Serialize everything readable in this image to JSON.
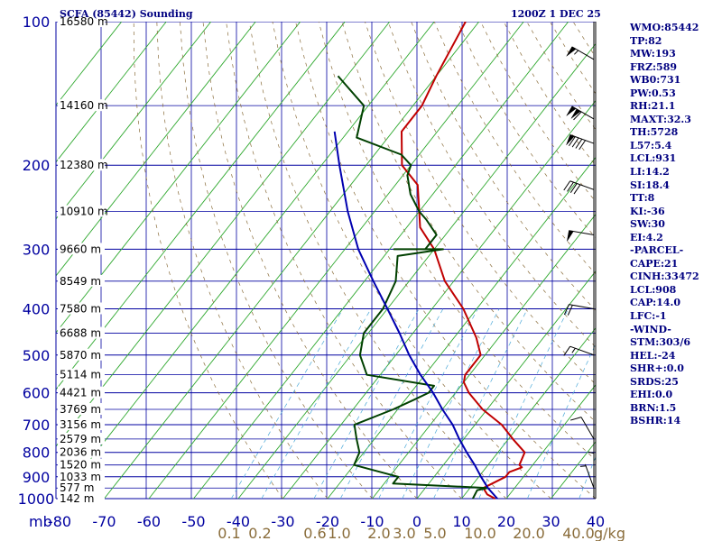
{
  "header": {
    "station": "SCFA (85442) Sounding",
    "valid_time": "1200Z  1 DEC 25"
  },
  "indices": [
    "WMO:85442",
    "TP:82",
    "MW:193",
    "FRZ:589",
    "WB0:731",
    "PW:0.53",
    "RH:21.1",
    "MAXT:32.3",
    "TH:5728",
    "L57:5.4",
    "LCL:931",
    "LI:14.2",
    "SI:18.4",
    "TT:8",
    "KI:-36",
    "SW:30",
    "EI:4.2",
    "-PARCEL-",
    "CAPE:21",
    "CINH:33472",
    "LCL:908",
    "CAP:14.0",
    "LFC:-1",
    "-WIND-",
    "STM:303/6",
    "HEL:-24",
    "SHR+:0.0",
    "SRDS:25",
    "EHI:0.0",
    "BRN:1.5",
    "BSHR:14"
  ],
  "chart_data": {
    "type": "line",
    "pressure_unit_label": "mb",
    "pressure_ticks": [
      100,
      200,
      300,
      400,
      500,
      600,
      700,
      800,
      900,
      1000
    ],
    "temperature_ticks": [
      -80,
      -70,
      -60,
      -50,
      -40,
      -30,
      -20,
      -10,
      0,
      10,
      20,
      30,
      40
    ],
    "mixing_ratio_ticks": [
      "0.1",
      "0.2",
      "0.6",
      "1.0",
      "2.0",
      "3.0",
      "5.0",
      "10.0",
      "20.0",
      "40.0"
    ],
    "mixing_ratio_unit": "g/kg",
    "height_labels": [
      {
        "p": 100,
        "label": "16580 m"
      },
      {
        "p": 150,
        "label": "14160 m"
      },
      {
        "p": 200,
        "label": "12380 m"
      },
      {
        "p": 250,
        "label": "10910 m"
      },
      {
        "p": 300,
        "label": "9660 m"
      },
      {
        "p": 350,
        "label": "8549 m"
      },
      {
        "p": 400,
        "label": "7580 m"
      },
      {
        "p": 450,
        "label": "6688 m"
      },
      {
        "p": 500,
        "label": "5870 m"
      },
      {
        "p": 550,
        "label": "5114 m"
      },
      {
        "p": 600,
        "label": "4421 m"
      },
      {
        "p": 650,
        "label": "3769 m"
      },
      {
        "p": 700,
        "label": "3156 m"
      },
      {
        "p": 750,
        "label": "2579 m"
      },
      {
        "p": 800,
        "label": "2036 m"
      },
      {
        "p": 850,
        "label": "1520 m"
      },
      {
        "p": 900,
        "label": "1033 m"
      },
      {
        "p": 950,
        "label": "577 m"
      },
      {
        "p": 1000,
        "label": "142 m"
      }
    ],
    "ylim": [
      1000,
      100
    ],
    "xlim": [
      -80,
      40
    ],
    "series": [
      {
        "color": "#c00000",
        "points": [
          [
            1000,
            17.5
          ],
          [
            980,
            15
          ],
          [
            965,
            14
          ],
          [
            950,
            13
          ],
          [
            900,
            16
          ],
          [
            880,
            16
          ],
          [
            860,
            18
          ],
          [
            850,
            17
          ],
          [
            800,
            16
          ],
          [
            750,
            11
          ],
          [
            700,
            6
          ],
          [
            650,
            -1
          ],
          [
            600,
            -7
          ],
          [
            570,
            -10
          ],
          [
            550,
            -11
          ],
          [
            500,
            -11
          ],
          [
            460,
            -15
          ],
          [
            400,
            -23
          ],
          [
            350,
            -32
          ],
          [
            300,
            -40
          ],
          [
            270,
            -47
          ],
          [
            250,
            -50
          ],
          [
            220,
            -55
          ],
          [
            200,
            -62
          ],
          [
            170,
            -68
          ],
          [
            150,
            -68
          ],
          [
            130,
            -70
          ],
          [
            100,
            -73
          ]
        ]
      },
      {
        "color": "#004000",
        "points": [
          [
            1000,
            12.5
          ],
          [
            960,
            12
          ],
          [
            950,
            14
          ],
          [
            930,
            -8
          ],
          [
            900,
            -8
          ],
          [
            850,
            -20
          ],
          [
            800,
            -21
          ],
          [
            750,
            -24
          ],
          [
            700,
            -27
          ],
          [
            650,
            -21
          ],
          [
            620,
            -18
          ],
          [
            600,
            -16
          ],
          [
            580,
            -16
          ],
          [
            550,
            -33
          ],
          [
            500,
            -38
          ],
          [
            450,
            -41
          ],
          [
            400,
            -41
          ],
          [
            350,
            -43
          ],
          [
            310,
            -47
          ],
          [
            300,
            -38
          ],
          [
            300,
            -49
          ],
          [
            300,
            -42
          ],
          [
            280,
            -42
          ],
          [
            260,
            -47
          ],
          [
            250,
            -50
          ],
          [
            230,
            -55
          ],
          [
            210,
            -59
          ],
          [
            200,
            -60
          ],
          [
            190,
            -64
          ],
          [
            175,
            -77
          ],
          [
            150,
            -81
          ],
          [
            130,
            -92
          ]
        ]
      },
      {
        "color": "#0000b0",
        "points": [
          [
            1000,
            18
          ],
          [
            950,
            14
          ],
          [
            900,
            10.5
          ],
          [
            850,
            7
          ],
          [
            800,
            3
          ],
          [
            750,
            -1
          ],
          [
            700,
            -5
          ],
          [
            650,
            -10
          ],
          [
            600,
            -15
          ],
          [
            550,
            -21
          ],
          [
            500,
            -27
          ],
          [
            450,
            -33
          ],
          [
            400,
            -40
          ],
          [
            350,
            -48
          ],
          [
            300,
            -57
          ],
          [
            250,
            -66
          ],
          [
            200,
            -76
          ],
          [
            170,
            -83
          ]
        ]
      }
    ],
    "wind_barbs": [
      {
        "p": 120,
        "dir": 300,
        "speed": 55
      },
      {
        "p": 160,
        "dir": 300,
        "speed": 110
      },
      {
        "p": 180,
        "dir": 290,
        "speed": 90
      },
      {
        "p": 225,
        "dir": 290,
        "speed": 40
      },
      {
        "p": 280,
        "dir": 280,
        "speed": 50
      },
      {
        "p": 400,
        "dir": 280,
        "speed": 20
      },
      {
        "p": 500,
        "dir": 290,
        "speed": 15
      },
      {
        "p": 750,
        "dir": 330,
        "speed": 10
      },
      {
        "p": 900,
        "dir": 0,
        "speed": 5
      },
      {
        "p": 950,
        "dir": 340,
        "speed": 5
      }
    ]
  }
}
